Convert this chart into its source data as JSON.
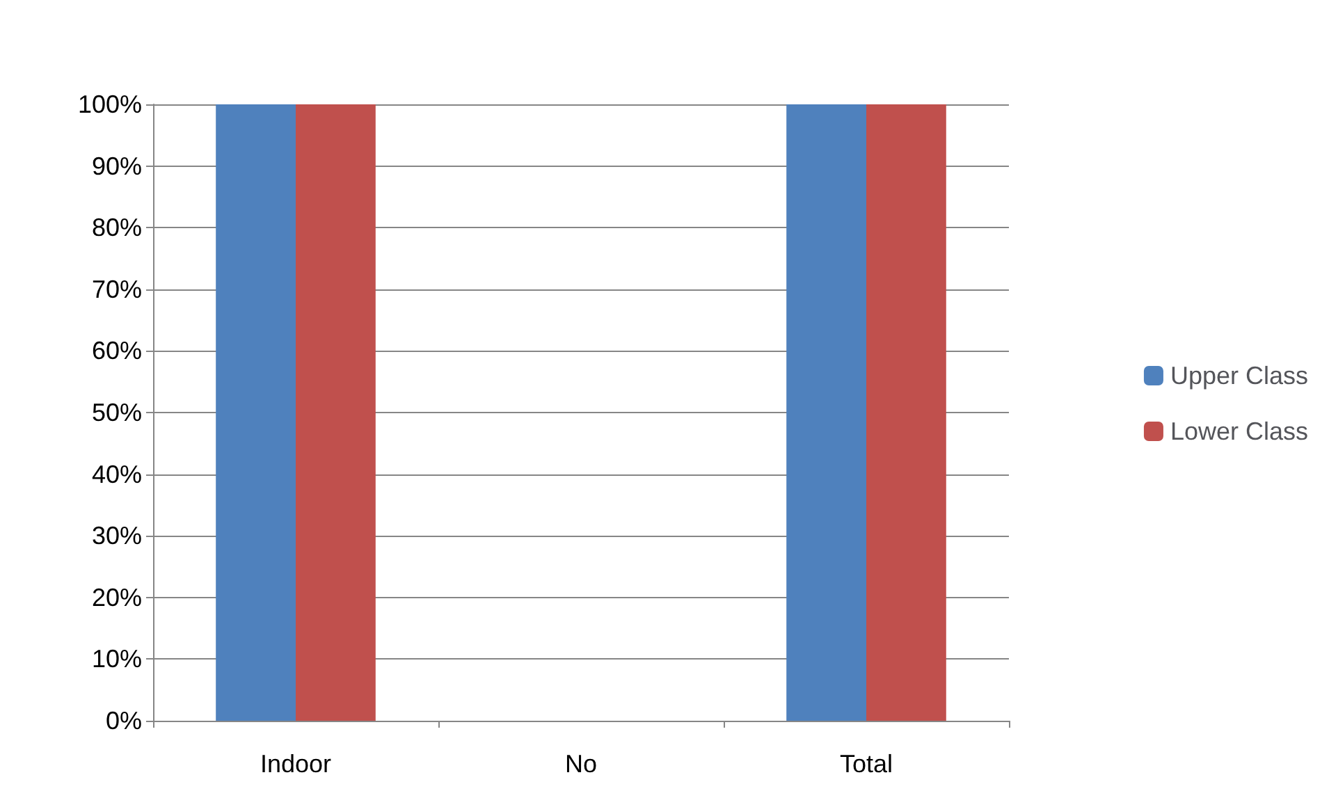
{
  "chart_data": {
    "type": "bar",
    "categories": [
      "Indoor",
      "No",
      "Total"
    ],
    "series": [
      {
        "name": "Upper Class",
        "color": "#4f81bd",
        "values": [
          100,
          0,
          100
        ]
      },
      {
        "name": "Lower Class",
        "color": "#c0504d",
        "values": [
          100,
          0,
          100
        ]
      }
    ],
    "ylim": [
      0,
      100
    ],
    "yticks": [
      {
        "value": 0,
        "label": "0%"
      },
      {
        "value": 10,
        "label": "10%"
      },
      {
        "value": 20,
        "label": "20%"
      },
      {
        "value": 30,
        "label": "30%"
      },
      {
        "value": 40,
        "label": "40%"
      },
      {
        "value": 50,
        "label": "50%"
      },
      {
        "value": 60,
        "label": "60%"
      },
      {
        "value": 70,
        "label": "70%"
      },
      {
        "value": 80,
        "label": "80%"
      },
      {
        "value": 90,
        "label": "90%"
      },
      {
        "value": 100,
        "label": "100%"
      }
    ],
    "grid": "y",
    "legend": "right"
  }
}
